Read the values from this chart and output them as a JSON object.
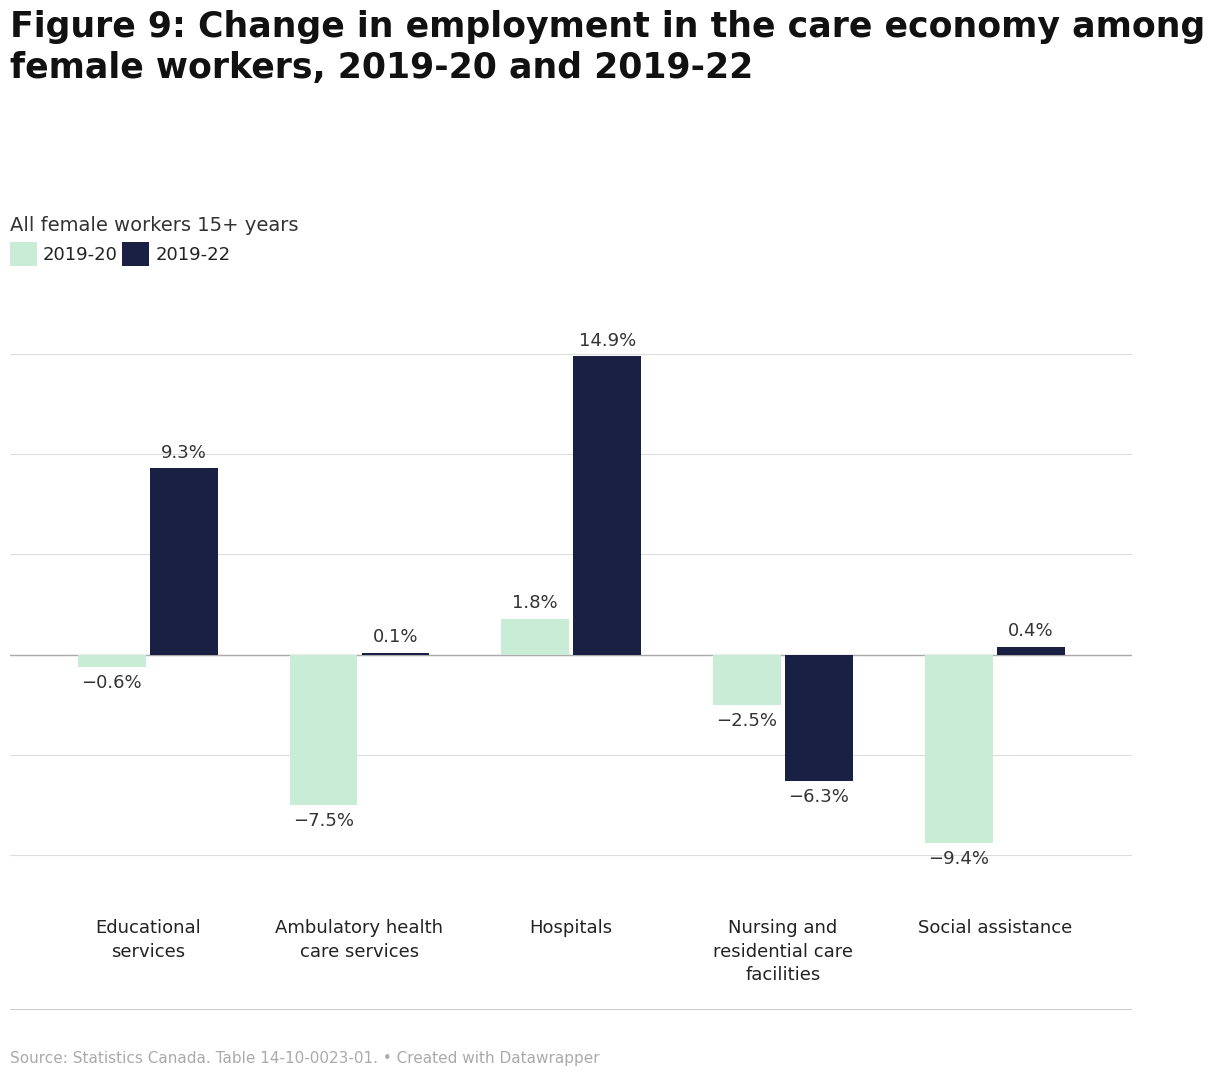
{
  "title": "Figure 9: Change in employment in the care economy among\nfemale workers, 2019-20 and 2019-22",
  "subtitle": "All female workers 15+ years",
  "source": "Source: Statistics Canada. Table 14-10-0023-01. • Created with Datawrapper",
  "categories": [
    "Educational\nservices",
    "Ambulatory health\ncare services",
    "Hospitals",
    "Nursing and\nresidential care\nfacilities",
    "Social assistance"
  ],
  "values_2019_20": [
    -0.6,
    -7.5,
    1.8,
    -2.5,
    -9.4
  ],
  "values_2019_22": [
    9.3,
    0.1,
    14.9,
    -6.3,
    0.4
  ],
  "labels_2019_20": [
    "−0.6%",
    "−7.5%",
    "1.8%",
    "−2.5%",
    "−9.4%"
  ],
  "labels_2019_22": [
    "9.3%",
    "0.1%",
    "14.9%",
    "−6.3%",
    "0.4%"
  ],
  "color_2019_20": "#c8ecd5",
  "color_2019_22": "#1a2044",
  "label_2019_20": "2019-20",
  "label_2019_22": "2019-22",
  "ylim": [
    -12.5,
    17.5
  ],
  "bar_width": 0.32,
  "background_color": "#ffffff",
  "grid_color": "#dddddd",
  "title_fontsize": 25,
  "subtitle_fontsize": 14,
  "legend_fontsize": 13,
  "tick_fontsize": 13,
  "source_fontsize": 11,
  "value_fontsize": 13
}
